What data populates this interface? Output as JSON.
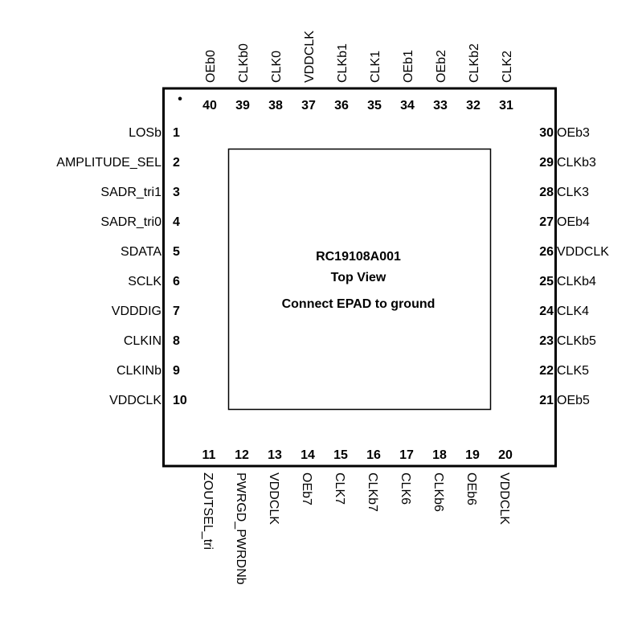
{
  "chip": {
    "part_number": "RC19108A001",
    "view_label": "Top View",
    "epad_note": "Connect EPAD to ground",
    "pin1_marker": "•"
  },
  "pins": {
    "left": [
      {
        "num": "1",
        "name": "LOSb"
      },
      {
        "num": "2",
        "name": "AMPLITUDE_SEL"
      },
      {
        "num": "3",
        "name": "SADR_tri1"
      },
      {
        "num": "4",
        "name": "SADR_tri0"
      },
      {
        "num": "5",
        "name": "SDATA"
      },
      {
        "num": "6",
        "name": "SCLK"
      },
      {
        "num": "7",
        "name": "VDDDIG"
      },
      {
        "num": "8",
        "name": "CLKIN"
      },
      {
        "num": "9",
        "name": "CLKINb"
      },
      {
        "num": "10",
        "name": "VDDCLK"
      }
    ],
    "bottom": [
      {
        "num": "11",
        "name": "ZOUTSEL_tri"
      },
      {
        "num": "12",
        "name": "PWRGD_PWRDNb"
      },
      {
        "num": "13",
        "name": "VDDCLK"
      },
      {
        "num": "14",
        "name": "OEb7"
      },
      {
        "num": "15",
        "name": "CLK7"
      },
      {
        "num": "16",
        "name": "CLKb7"
      },
      {
        "num": "17",
        "name": "CLK6"
      },
      {
        "num": "18",
        "name": "CLKb6"
      },
      {
        "num": "19",
        "name": "OEb6"
      },
      {
        "num": "20",
        "name": "VDDCLK"
      }
    ],
    "right": [
      {
        "num": "21",
        "name": "OEb5"
      },
      {
        "num": "22",
        "name": "CLK5"
      },
      {
        "num": "23",
        "name": "CLKb5"
      },
      {
        "num": "24",
        "name": "CLK4"
      },
      {
        "num": "25",
        "name": "CLKb4"
      },
      {
        "num": "26",
        "name": "VDDCLK"
      },
      {
        "num": "27",
        "name": "OEb4"
      },
      {
        "num": "28",
        "name": "CLK3"
      },
      {
        "num": "29",
        "name": "CLKb3"
      },
      {
        "num": "30",
        "name": "OEb3"
      }
    ],
    "top": [
      {
        "num": "31",
        "name": "CLK2"
      },
      {
        "num": "32",
        "name": "CLKb2"
      },
      {
        "num": "33",
        "name": "OEb2"
      },
      {
        "num": "34",
        "name": "OEb1"
      },
      {
        "num": "35",
        "name": "CLK1"
      },
      {
        "num": "36",
        "name": "CLKb1"
      },
      {
        "num": "37",
        "name": "VDDCLK"
      },
      {
        "num": "38",
        "name": "CLK0"
      },
      {
        "num": "39",
        "name": "CLKb0"
      },
      {
        "num": "40",
        "name": "OEb0"
      }
    ]
  }
}
